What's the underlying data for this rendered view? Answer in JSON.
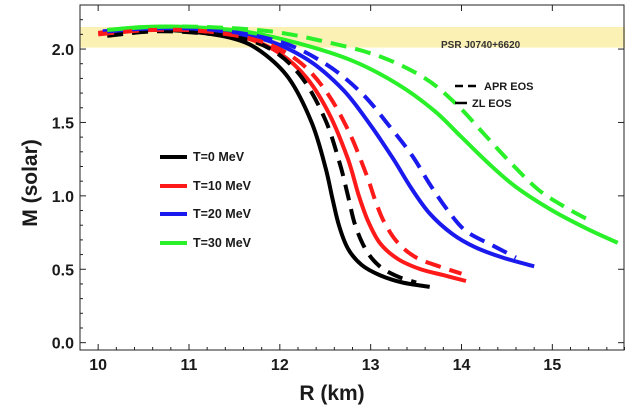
{
  "chart_data": {
    "type": "line",
    "xlabel": "R (km)",
    "ylabel": "M (solar)",
    "xlim": [
      9.8,
      15.8
    ],
    "ylim": [
      -0.05,
      2.3
    ],
    "xticks": [
      10,
      11,
      12,
      13,
      14,
      15
    ],
    "yticks": [
      0.0,
      0.5,
      1.0,
      1.5,
      2.0
    ],
    "xtick_labels": [
      "10",
      "11",
      "12",
      "13",
      "14",
      "15"
    ],
    "ytick_labels": [
      "0.0",
      "0.5",
      "1.0",
      "1.5",
      "2.0"
    ],
    "band": {
      "label": "PSR J0740+6620",
      "y_range": [
        2.01,
        2.15
      ],
      "color": "#fcf1b4"
    },
    "line_legend": [
      {
        "label": "T=0 MeV",
        "color": "#000000"
      },
      {
        "label": "T=10 MeV",
        "color": "#ff1a1a"
      },
      {
        "label": "T=20 MeV",
        "color": "#1a1aee"
      },
      {
        "label": "T=30 MeV",
        "color": "#2af02a"
      }
    ],
    "style_legend": [
      {
        "label": "APR EOS",
        "style": "dashed"
      },
      {
        "label": "ZL EOS",
        "style": "solid"
      }
    ],
    "series": [
      {
        "temperature": "T=0 MeV",
        "eos": "ZL EOS",
        "color": "#000000",
        "dashed": false,
        "points": [
          [
            10.15,
            2.11
          ],
          [
            10.5,
            2.13
          ],
          [
            11.0,
            2.12
          ],
          [
            11.5,
            2.07
          ],
          [
            11.8,
            1.98
          ],
          [
            12.1,
            1.8
          ],
          [
            12.35,
            1.5
          ],
          [
            12.5,
            1.2
          ],
          [
            12.58,
            0.98
          ],
          [
            12.65,
            0.8
          ],
          [
            12.75,
            0.64
          ],
          [
            12.9,
            0.53
          ],
          [
            13.1,
            0.46
          ],
          [
            13.35,
            0.41
          ],
          [
            13.65,
            0.38
          ]
        ]
      },
      {
        "temperature": "T=0 MeV",
        "eos": "APR EOS",
        "color": "#000000",
        "dashed": true,
        "points": [
          [
            10.1,
            2.09
          ],
          [
            10.6,
            2.12
          ],
          [
            11.1,
            2.11
          ],
          [
            11.6,
            2.07
          ],
          [
            11.95,
            1.98
          ],
          [
            12.25,
            1.8
          ],
          [
            12.5,
            1.52
          ],
          [
            12.66,
            1.22
          ],
          [
            12.75,
            1.0
          ],
          [
            12.83,
            0.8
          ],
          [
            12.95,
            0.63
          ],
          [
            13.1,
            0.52
          ],
          [
            13.3,
            0.45
          ],
          [
            13.5,
            0.41
          ]
        ]
      },
      {
        "temperature": "T=10 MeV",
        "eos": "ZL EOS",
        "color": "#ff1a1a",
        "dashed": false,
        "points": [
          [
            10.0,
            2.11
          ],
          [
            10.5,
            2.14
          ],
          [
            11.0,
            2.13
          ],
          [
            11.6,
            2.08
          ],
          [
            12.0,
            1.97
          ],
          [
            12.3,
            1.8
          ],
          [
            12.55,
            1.55
          ],
          [
            12.75,
            1.25
          ],
          [
            12.87,
            1.0
          ],
          [
            12.97,
            0.83
          ],
          [
            13.1,
            0.68
          ],
          [
            13.3,
            0.57
          ],
          [
            13.55,
            0.5
          ],
          [
            13.8,
            0.46
          ],
          [
            14.05,
            0.42
          ]
        ]
      },
      {
        "temperature": "T=10 MeV",
        "eos": "APR EOS",
        "color": "#ff1a1a",
        "dashed": true,
        "points": [
          [
            10.0,
            2.1
          ],
          [
            10.6,
            2.13
          ],
          [
            11.2,
            2.12
          ],
          [
            11.8,
            2.05
          ],
          [
            12.2,
            1.92
          ],
          [
            12.5,
            1.72
          ],
          [
            12.75,
            1.45
          ],
          [
            12.95,
            1.15
          ],
          [
            13.05,
            0.97
          ],
          [
            13.15,
            0.82
          ],
          [
            13.3,
            0.68
          ],
          [
            13.5,
            0.58
          ],
          [
            13.75,
            0.52
          ],
          [
            14.0,
            0.47
          ]
        ]
      },
      {
        "temperature": "T=20 MeV",
        "eos": "ZL EOS",
        "color": "#1a1aee",
        "dashed": false,
        "points": [
          [
            10.05,
            2.12
          ],
          [
            10.5,
            2.14
          ],
          [
            11.1,
            2.13
          ],
          [
            11.8,
            2.07
          ],
          [
            12.3,
            1.93
          ],
          [
            12.7,
            1.72
          ],
          [
            13.0,
            1.48
          ],
          [
            13.25,
            1.25
          ],
          [
            13.45,
            1.05
          ],
          [
            13.65,
            0.88
          ],
          [
            13.9,
            0.74
          ],
          [
            14.15,
            0.65
          ],
          [
            14.45,
            0.58
          ],
          [
            14.8,
            0.52
          ]
        ]
      },
      {
        "temperature": "T=20 MeV",
        "eos": "APR EOS",
        "color": "#1a1aee",
        "dashed": true,
        "points": [
          [
            10.1,
            2.12
          ],
          [
            10.6,
            2.14
          ],
          [
            11.3,
            2.13
          ],
          [
            12.0,
            2.05
          ],
          [
            12.5,
            1.9
          ],
          [
            12.9,
            1.7
          ],
          [
            13.2,
            1.48
          ],
          [
            13.45,
            1.28
          ],
          [
            13.65,
            1.08
          ],
          [
            13.85,
            0.9
          ],
          [
            14.05,
            0.76
          ],
          [
            14.35,
            0.66
          ],
          [
            14.6,
            0.58
          ]
        ]
      },
      {
        "temperature": "T=30 MeV",
        "eos": "ZL EOS",
        "color": "#2af02a",
        "dashed": false,
        "points": [
          [
            10.1,
            2.13
          ],
          [
            10.5,
            2.15
          ],
          [
            11.0,
            2.15
          ],
          [
            11.6,
            2.12
          ],
          [
            12.2,
            2.04
          ],
          [
            12.8,
            1.92
          ],
          [
            13.3,
            1.76
          ],
          [
            13.7,
            1.58
          ],
          [
            14.0,
            1.4
          ],
          [
            14.3,
            1.22
          ],
          [
            14.6,
            1.06
          ],
          [
            15.0,
            0.9
          ],
          [
            15.4,
            0.77
          ],
          [
            15.72,
            0.68
          ]
        ]
      },
      {
        "temperature": "T=30 MeV",
        "eos": "APR EOS",
        "color": "#2af02a",
        "dashed": true,
        "points": [
          [
            10.1,
            2.13
          ],
          [
            10.6,
            2.15
          ],
          [
            11.2,
            2.15
          ],
          [
            11.9,
            2.12
          ],
          [
            12.5,
            2.05
          ],
          [
            13.1,
            1.95
          ],
          [
            13.6,
            1.8
          ],
          [
            13.95,
            1.62
          ],
          [
            14.25,
            1.42
          ],
          [
            14.55,
            1.22
          ],
          [
            14.85,
            1.04
          ],
          [
            15.15,
            0.92
          ],
          [
            15.45,
            0.82
          ]
        ]
      }
    ]
  }
}
